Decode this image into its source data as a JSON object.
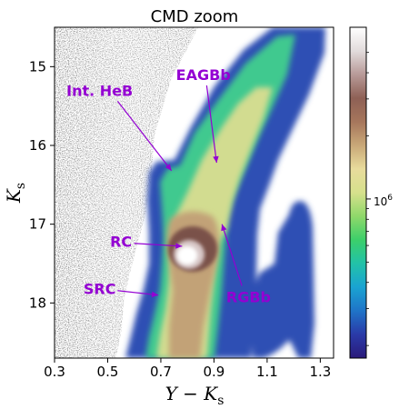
{
  "chart_data": {
    "type": "heatmap",
    "title": "CMD zoom",
    "xlabel": "Y − K",
    "xlabel_sub": "s",
    "ylabel": "K",
    "ylabel_sub": "s",
    "xlim": [
      0.3,
      1.35
    ],
    "ylim": [
      18.7,
      14.5
    ],
    "y_inverted": true,
    "grid": false,
    "xticks": [
      0.3,
      0.5,
      0.7,
      0.9,
      1.1,
      1.3
    ],
    "xtick_labels": [
      "0.3",
      "0.5",
      "0.7",
      "0.9",
      "1.1",
      "1.3"
    ],
    "yticks": [
      15,
      16,
      17,
      18
    ],
    "ytick_labels": [
      "15",
      "16",
      "17",
      "18"
    ],
    "colorbar": {
      "tick_label_base": "10",
      "tick_label_exp": "6",
      "major_tick_value": 1000000,
      "minor_tick_values": [
        200000,
        300000,
        400000,
        500000,
        600000,
        700000,
        800000,
        900000,
        2000000,
        3000000,
        4000000,
        5000000
      ],
      "colors": [
        "#2a1a7a",
        "#2a3aa8",
        "#1f74c8",
        "#1aa3d2",
        "#22c2a8",
        "#3ccf6a",
        "#8fd86a",
        "#d6e08c",
        "#e8dc9c",
        "#c9a878",
        "#a6765c",
        "#8e6055",
        "#b89a98",
        "#e2dcdc",
        "#ffffff"
      ]
    },
    "annotations": [
      {
        "text": "Int. HeB",
        "x": 0.47,
        "y": 15.3,
        "target_x": 0.74,
        "target_y": 16.32
      },
      {
        "text": "EAGBb",
        "x": 0.86,
        "y": 15.1,
        "target_x": 0.91,
        "target_y": 16.22
      },
      {
        "text": "RC",
        "x": 0.55,
        "y": 17.22,
        "target_x": 0.78,
        "target_y": 17.28
      },
      {
        "text": "RGBb",
        "x": 1.03,
        "y": 17.92,
        "target_x": 0.93,
        "target_y": 17.0
      },
      {
        "text": "SRC",
        "x": 0.47,
        "y": 17.82,
        "target_x": 0.69,
        "target_y": 17.9
      }
    ],
    "annotation_color": "#9400d3"
  }
}
